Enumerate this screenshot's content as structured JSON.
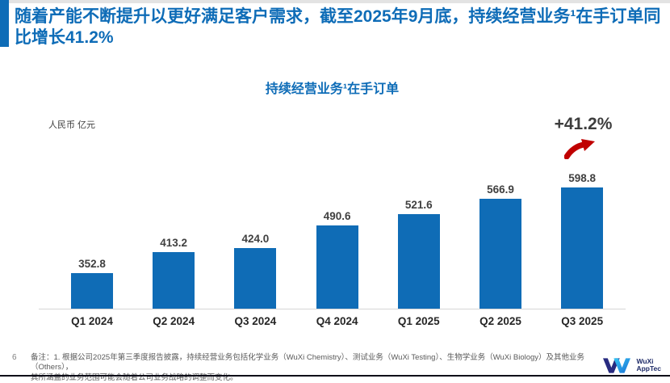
{
  "slide": {
    "headline": "随着产能不断提升以更好满足客户需求，截至2025年9月底，持续经营业务¹在手订单同比增长41.2%",
    "page_number": "6",
    "footnote_line1": "备注：1. 根据公司2025年第三季度报告披露，持续经营业务包括化学业务（WuXi Chemistry）、测试业务（WuXi Testing）、生物学业务（WuXi Biology）及其他业务（Others），",
    "footnote_line2": "其所涵盖的业务范围可能会随着公司业务战略的调整而变化。",
    "logo": {
      "line1": "WuXi",
      "line2": "AppTec"
    }
  },
  "chart_data": {
    "type": "bar",
    "title": "持续经营业务¹在手订单",
    "unit_label": "人民币 亿元",
    "categories": [
      "Q1 2024",
      "Q2 2024",
      "Q3 2024",
      "Q4 2024",
      "Q1 2025",
      "Q2 2025",
      "Q3 2025"
    ],
    "values": [
      352.8,
      413.2,
      424.0,
      490.6,
      521.6,
      566.9,
      598.8
    ],
    "value_labels": [
      "352.8",
      "413.2",
      "424.0",
      "490.6",
      "521.6",
      "566.9",
      "598.8"
    ],
    "annotation": "+41.2%",
    "ylim": [
      250,
      650
    ],
    "grid": false,
    "legend": "none",
    "bar_color": "#0f6cb6",
    "annotation_arrow_color": "#c00000"
  },
  "colors": {
    "accent_blue": "#0e6cb7",
    "bar_blue": "#0f6cb6",
    "value_text": "#404040",
    "footnote_gray": "#595959",
    "arrow_red": "#c00000",
    "logo_navy": "#282b80",
    "logo_cyan": "#35c6f4"
  }
}
